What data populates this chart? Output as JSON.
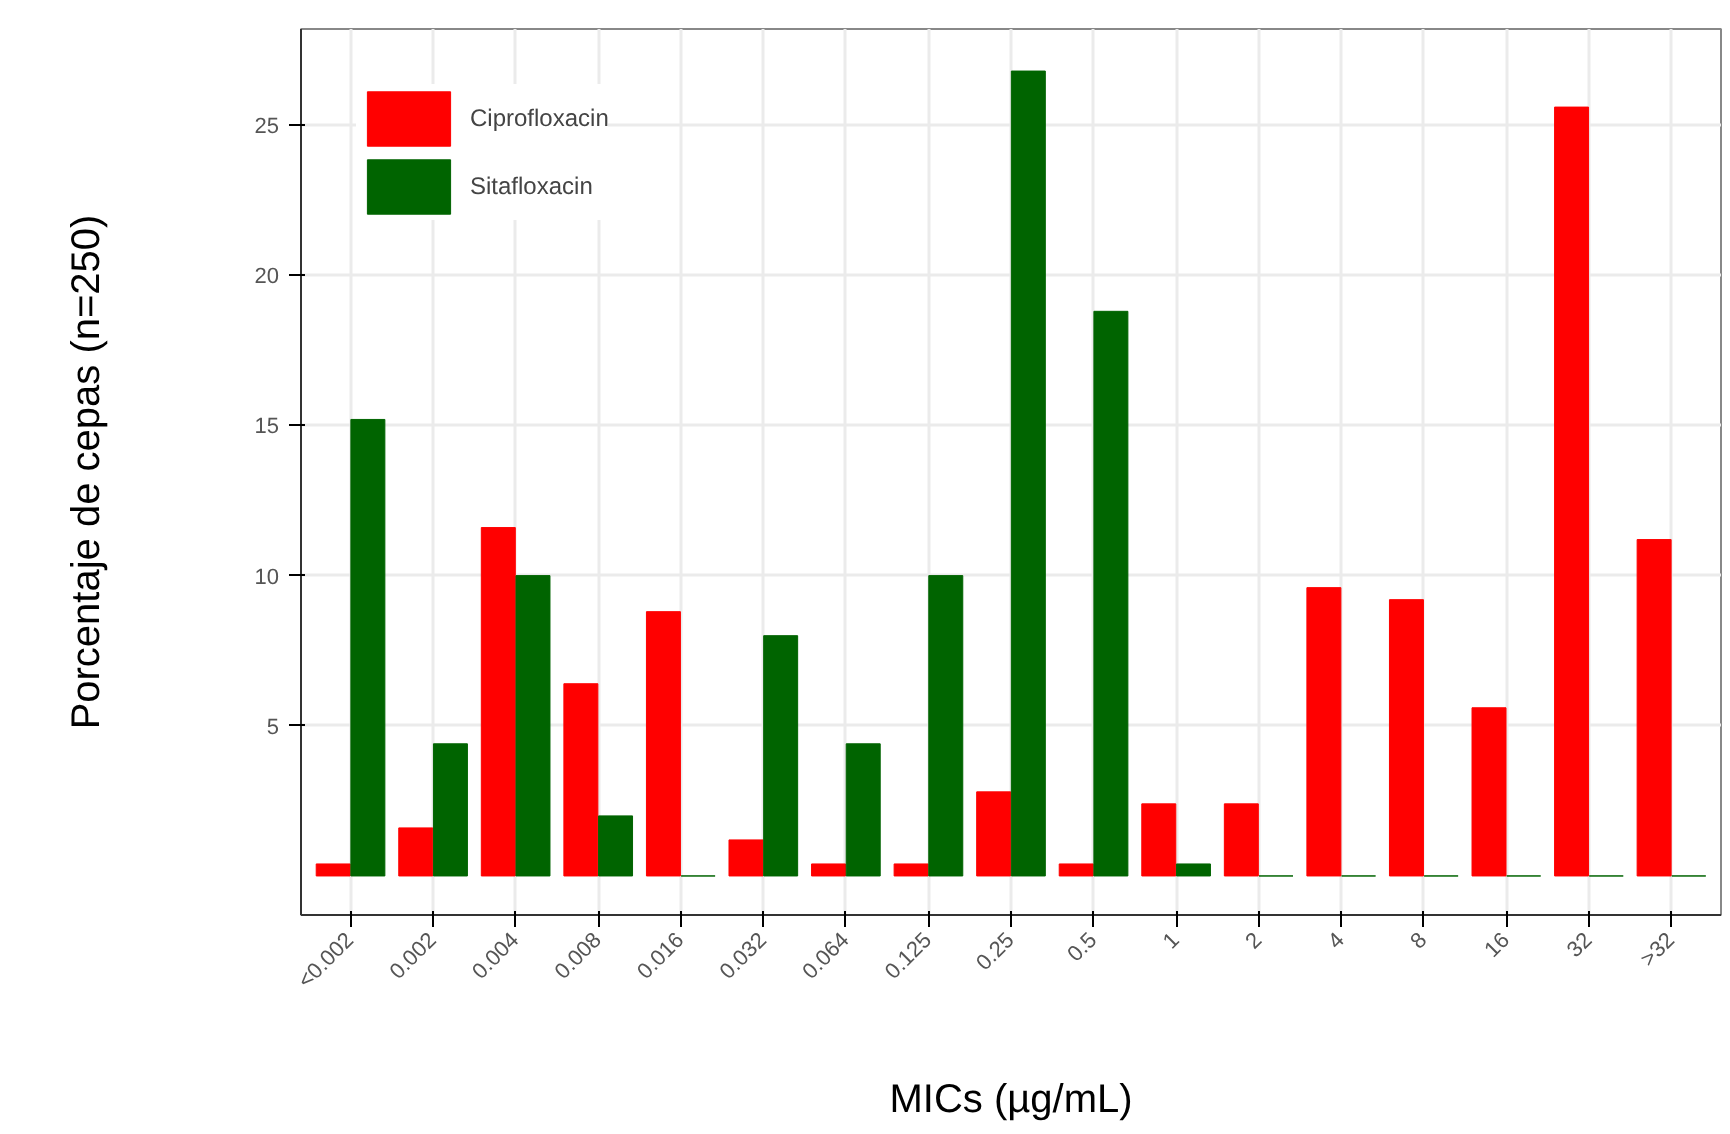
{
  "chart_data": {
    "type": "bar",
    "xlabel": "MICs (µg/mL)",
    "ylabel": "Porcentaje de cepas (n=250)",
    "categories": [
      "<0.002",
      "0.002",
      "0.004",
      "0.008",
      "0.016",
      "0.032",
      "0.064",
      "0.125",
      "0.25",
      "0.5",
      "1",
      "2",
      "4",
      "8",
      "16",
      "32",
      ">32"
    ],
    "series": [
      {
        "name": "Ciprofloxacin",
        "color": "#ff0000",
        "values": [
          0.4,
          1.6,
          11.6,
          6.4,
          8.8,
          1.2,
          0.4,
          0.4,
          2.8,
          0.4,
          2.4,
          2.4,
          9.6,
          9.2,
          5.6,
          25.6,
          11.2
        ]
      },
      {
        "name": "Sitafloxacin",
        "color": "#006400",
        "values": [
          15.2,
          4.4,
          10,
          2,
          0,
          8,
          4.4,
          10,
          26.8,
          18.8,
          0.4,
          0,
          0,
          0,
          0,
          0,
          0
        ]
      }
    ],
    "ylim": [
      -1.3,
      28.2
    ],
    "yticks": [
      5,
      10,
      15,
      20,
      25
    ],
    "grid": true,
    "legend": "top left"
  }
}
